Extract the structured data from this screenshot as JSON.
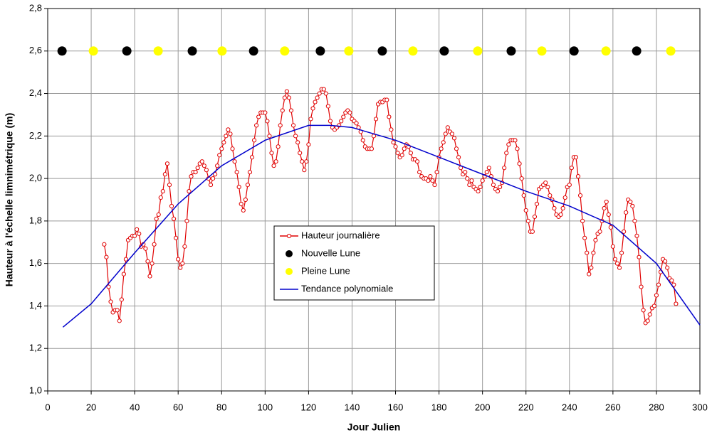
{
  "chart_data": {
    "type": "line",
    "xlabel": "Jour Julien",
    "ylabel": "Hauteur à l'échelle limnimétrique (m)",
    "xlim": [
      0,
      300
    ],
    "xticks": [
      0,
      20,
      40,
      60,
      80,
      100,
      120,
      140,
      160,
      180,
      200,
      220,
      240,
      260,
      280,
      300
    ],
    "ylim": [
      1.0,
      2.8
    ],
    "yticks": [
      {
        "value": 1.0,
        "label": "1,0"
      },
      {
        "value": 1.2,
        "label": "1,2"
      },
      {
        "value": 1.4,
        "label": "1,4"
      },
      {
        "value": 1.6,
        "label": "1,6"
      },
      {
        "value": 1.8,
        "label": "1,8"
      },
      {
        "value": 2.0,
        "label": "2,0"
      },
      {
        "value": 2.2,
        "label": "2,2"
      },
      {
        "value": 2.4,
        "label": "2,4"
      },
      {
        "value": 2.6,
        "label": "2,6"
      },
      {
        "value": 2.8,
        "label": "2,8"
      }
    ],
    "grid": true,
    "legend": "center",
    "series": [
      {
        "name": "Hauteur journalière",
        "color": "#e00000",
        "line": true,
        "marker": "open",
        "x": [
          26,
          27,
          28,
          29,
          30,
          31,
          32,
          33,
          34,
          35,
          36,
          37,
          38,
          39,
          40,
          41,
          42,
          43,
          44,
          45,
          46,
          47,
          48,
          49,
          50,
          51,
          52,
          53,
          54,
          55,
          56,
          57,
          58,
          59,
          60,
          61,
          62,
          63,
          64,
          65,
          66,
          67,
          68,
          69,
          70,
          71,
          72,
          73,
          74,
          75,
          76,
          77,
          78,
          79,
          80,
          81,
          82,
          83,
          84,
          85,
          86,
          87,
          88,
          89,
          90,
          91,
          92,
          93,
          94,
          95,
          96,
          97,
          98,
          99,
          100,
          101,
          102,
          103,
          104,
          105,
          106,
          107,
          108,
          109,
          110,
          111,
          112,
          113,
          114,
          115,
          116,
          117,
          118,
          119,
          120,
          121,
          122,
          123,
          124,
          125,
          126,
          127,
          128,
          129,
          130,
          131,
          132,
          133,
          134,
          135,
          136,
          137,
          138,
          139,
          140,
          141,
          142,
          143,
          144,
          145,
          146,
          147,
          148,
          149,
          150,
          151,
          152,
          153,
          154,
          155,
          156,
          157,
          158,
          159,
          160,
          161,
          162,
          163,
          164,
          165,
          166,
          167,
          168,
          169,
          170,
          171,
          172,
          173,
          174,
          175,
          176,
          177,
          178,
          179,
          180,
          181,
          182,
          183,
          184,
          185,
          186,
          187,
          188,
          189,
          190,
          191,
          192,
          193,
          194,
          195,
          196,
          197,
          198,
          199,
          200,
          201,
          202,
          203,
          204,
          205,
          206,
          207,
          208,
          209,
          210,
          211,
          212,
          213,
          214,
          215,
          216,
          217,
          218,
          219,
          220,
          221,
          222,
          223,
          224,
          225,
          226,
          227,
          228,
          229,
          230,
          231,
          232,
          233,
          234,
          235,
          236,
          237,
          238,
          239,
          240,
          241,
          242,
          243,
          244,
          245,
          246,
          247,
          248,
          249,
          250,
          251,
          252,
          253,
          254,
          255,
          256,
          257,
          258,
          259,
          260,
          261,
          262,
          263,
          264,
          265,
          266,
          267,
          268,
          269,
          270,
          271,
          272,
          273,
          274,
          275,
          276,
          277,
          278,
          279,
          280,
          281,
          282,
          283,
          284,
          285,
          286,
          287,
          288,
          289
        ],
        "values": [
          1.69,
          1.63,
          1.49,
          1.42,
          1.37,
          1.38,
          1.38,
          1.33,
          1.43,
          1.55,
          1.62,
          1.71,
          1.72,
          1.73,
          1.73,
          1.76,
          1.74,
          1.68,
          1.69,
          1.67,
          1.61,
          1.54,
          1.6,
          1.69,
          1.81,
          1.83,
          1.91,
          1.94,
          2.02,
          2.07,
          1.97,
          1.87,
          1.81,
          1.72,
          1.62,
          1.58,
          1.6,
          1.68,
          1.8,
          1.94,
          2.01,
          2.03,
          2.03,
          2.05,
          2.07,
          2.08,
          2.06,
          2.04,
          2.0,
          1.97,
          2.0,
          2.02,
          2.06,
          2.11,
          2.14,
          2.17,
          2.2,
          2.23,
          2.21,
          2.14,
          2.08,
          2.03,
          1.96,
          1.88,
          1.85,
          1.9,
          1.97,
          2.03,
          2.1,
          2.18,
          2.25,
          2.29,
          2.31,
          2.31,
          2.31,
          2.27,
          2.2,
          2.12,
          2.06,
          2.08,
          2.15,
          2.25,
          2.32,
          2.38,
          2.41,
          2.38,
          2.32,
          2.25,
          2.2,
          2.17,
          2.12,
          2.08,
          2.04,
          2.08,
          2.16,
          2.28,
          2.33,
          2.36,
          2.38,
          2.4,
          2.42,
          2.42,
          2.4,
          2.34,
          2.27,
          2.24,
          2.23,
          2.24,
          2.25,
          2.27,
          2.29,
          2.31,
          2.32,
          2.31,
          2.28,
          2.27,
          2.26,
          2.24,
          2.22,
          2.18,
          2.15,
          2.14,
          2.14,
          2.14,
          2.2,
          2.28,
          2.35,
          2.36,
          2.36,
          2.37,
          2.37,
          2.29,
          2.23,
          2.17,
          2.15,
          2.12,
          2.1,
          2.11,
          2.14,
          2.16,
          2.15,
          2.12,
          2.09,
          2.09,
          2.08,
          2.03,
          2.01,
          2.0,
          2.0,
          1.99,
          2.01,
          1.99,
          1.97,
          2.03,
          2.1,
          2.14,
          2.17,
          2.21,
          2.24,
          2.22,
          2.21,
          2.19,
          2.14,
          2.1,
          2.05,
          2.02,
          2.03,
          2.0,
          1.97,
          1.99,
          1.96,
          1.95,
          1.94,
          1.96,
          1.99,
          2.01,
          2.03,
          2.05,
          2.01,
          1.97,
          1.95,
          1.94,
          1.96,
          1.98,
          2.05,
          2.12,
          2.16,
          2.18,
          2.18,
          2.18,
          2.14,
          2.07,
          2.0,
          1.92,
          1.85,
          1.8,
          1.75,
          1.75,
          1.82,
          1.88,
          1.95,
          1.96,
          1.97,
          1.98,
          1.96,
          1.92,
          1.9,
          1.86,
          1.83,
          1.82,
          1.83,
          1.86,
          1.91,
          1.96,
          1.97,
          2.05,
          2.1,
          2.1,
          2.01,
          1.92,
          1.8,
          1.72,
          1.65,
          1.55,
          1.58,
          1.65,
          1.71,
          1.74,
          1.75,
          1.8,
          1.86,
          1.89,
          1.83,
          1.77,
          1.68,
          1.62,
          1.6,
          1.58,
          1.65,
          1.75,
          1.84,
          1.9,
          1.89,
          1.87,
          1.8,
          1.73,
          1.63,
          1.49,
          1.38,
          1.32,
          1.33,
          1.36,
          1.39,
          1.4,
          1.45,
          1.5,
          1.56,
          1.62,
          1.61,
          1.58,
          1.53,
          1.52,
          1.5,
          1.41
        ]
      },
      {
        "name": "Nouvelle Lune",
        "color": "#000000",
        "line": false,
        "marker": "filled",
        "x": [
          6.6,
          36.4,
          66.5,
          94.7,
          125.4,
          153.9,
          182.4,
          213.2,
          242.1,
          270.9
        ],
        "values": [
          2.6,
          2.6,
          2.6,
          2.6,
          2.6,
          2.6,
          2.6,
          2.6,
          2.6,
          2.6
        ]
      },
      {
        "name": "Pleine Lune",
        "color": "#ffff00",
        "line": false,
        "marker": "filled",
        "x": [
          21,
          50.8,
          80.2,
          109,
          138.5,
          168,
          197.8,
          227.3,
          256.8,
          286.6
        ],
        "values": [
          2.6,
          2.6,
          2.6,
          2.6,
          2.6,
          2.6,
          2.6,
          2.6,
          2.6,
          2.6
        ]
      },
      {
        "name": "Tendance polynomiale",
        "color": "#0000cc",
        "line": true,
        "marker": "none",
        "x": [
          7,
          20,
          40,
          60,
          80,
          100,
          120,
          130,
          140,
          160,
          180,
          200,
          220,
          240,
          260,
          280,
          300
        ],
        "values": [
          1.3,
          1.41,
          1.65,
          1.88,
          2.06,
          2.18,
          2.25,
          2.25,
          2.24,
          2.18,
          2.1,
          2.02,
          1.94,
          1.87,
          1.78,
          1.6,
          1.31
        ]
      }
    ]
  }
}
